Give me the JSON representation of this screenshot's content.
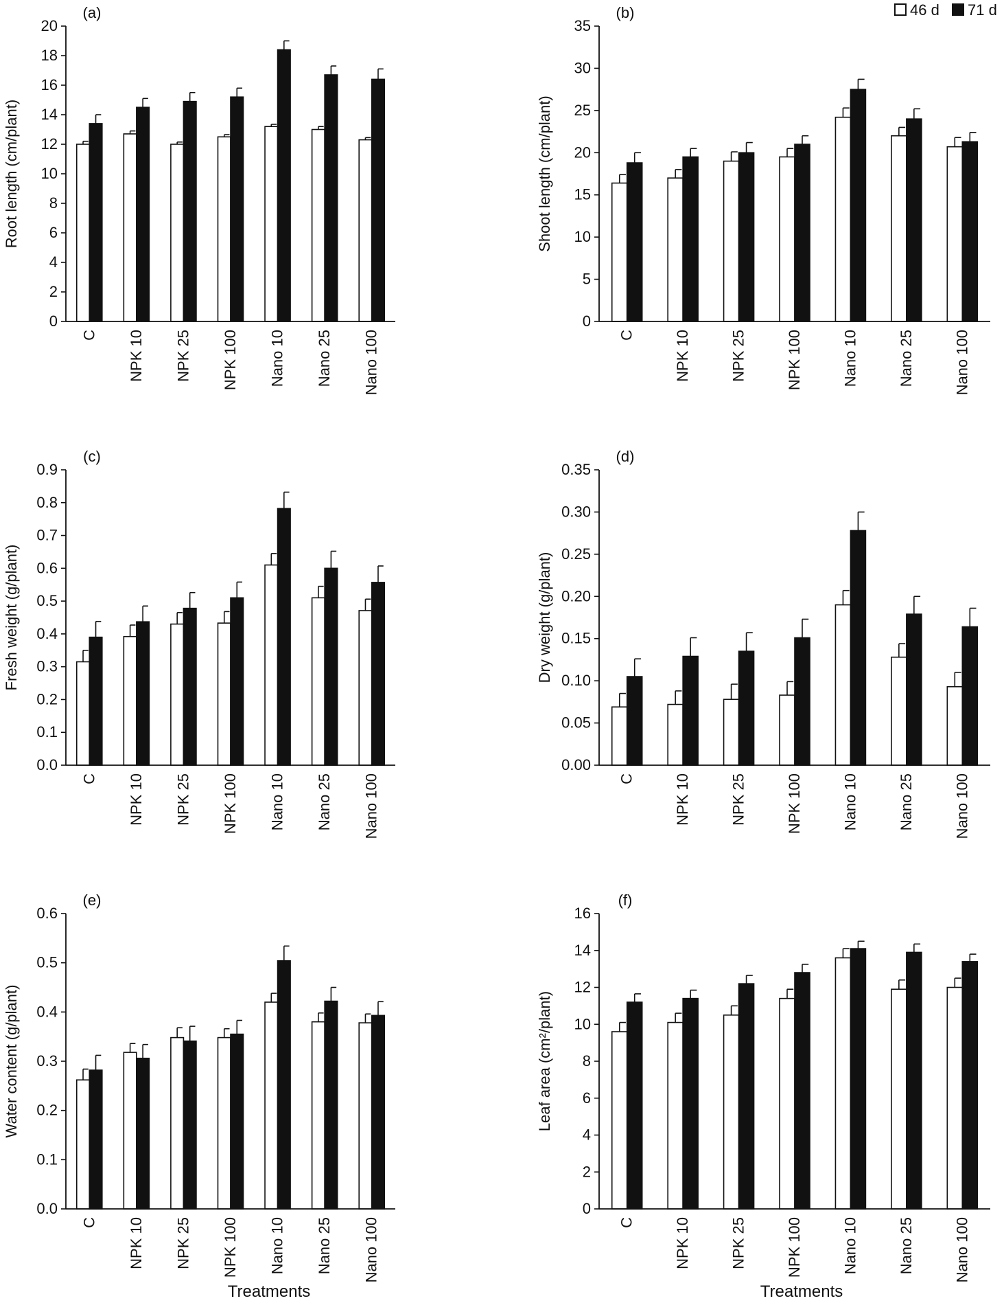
{
  "legend": {
    "items": [
      "46 d",
      "71 d"
    ]
  },
  "xtitle": [
    "Treatments",
    "Treatments"
  ],
  "colors": {
    "series_46d": "#ffffff",
    "series_71d": "#111111",
    "axis": "#111111"
  },
  "chart_data": [
    {
      "type": "bar",
      "panel": "(a)",
      "ylabel": "Root length (cm/plant)",
      "ylim": [
        0,
        20
      ],
      "ytick_step": 2,
      "ytick_decimals": 0,
      "categories": [
        "C",
        "NPK 10",
        "NPK 25",
        "NPK 100",
        "Nano 10",
        "Nano 25",
        "Nano 100"
      ],
      "series": [
        {
          "name": "46 d",
          "values": [
            12.0,
            12.7,
            12.0,
            12.5,
            13.2,
            13.0,
            12.3
          ],
          "errors": [
            0.2,
            0.2,
            0.15,
            0.15,
            0.15,
            0.2,
            0.15
          ]
        },
        {
          "name": "71 d",
          "values": [
            13.4,
            14.5,
            14.9,
            15.2,
            18.4,
            16.7,
            16.4
          ],
          "errors": [
            0.6,
            0.6,
            0.6,
            0.6,
            0.6,
            0.6,
            0.7
          ]
        }
      ]
    },
    {
      "type": "bar",
      "panel": "(b)",
      "ylabel": "Shoot length (cm/plant)",
      "ylim": [
        0,
        35
      ],
      "ytick_step": 5,
      "ytick_decimals": 0,
      "categories": [
        "C",
        "NPK 10",
        "NPK 25",
        "NPK 100",
        "Nano 10",
        "Nano 25",
        "Nano 100"
      ],
      "series": [
        {
          "name": "46 d",
          "values": [
            16.4,
            17.0,
            19.0,
            19.5,
            24.2,
            22.0,
            20.7
          ],
          "errors": [
            1.0,
            1.0,
            1.1,
            1.0,
            1.1,
            1.0,
            1.1
          ]
        },
        {
          "name": "71 d",
          "values": [
            18.8,
            19.5,
            20.0,
            21.0,
            27.5,
            24.0,
            21.3
          ],
          "errors": [
            1.2,
            1.0,
            1.2,
            1.0,
            1.2,
            1.2,
            1.1
          ]
        }
      ]
    },
    {
      "type": "bar",
      "panel": "(c)",
      "ylabel": "Fresh weight (g/plant)",
      "ylim": [
        0,
        0.9
      ],
      "ytick_step": 0.1,
      "ytick_decimals": 1,
      "categories": [
        "C",
        "NPK 10",
        "NPK 25",
        "NPK 100",
        "Nano 10",
        "Nano 25",
        "Nano 100"
      ],
      "series": [
        {
          "name": "46 d",
          "values": [
            0.315,
            0.392,
            0.43,
            0.433,
            0.61,
            0.51,
            0.471
          ],
          "errors": [
            0.035,
            0.035,
            0.035,
            0.035,
            0.035,
            0.035,
            0.035
          ]
        },
        {
          "name": "71 d",
          "values": [
            0.39,
            0.437,
            0.478,
            0.51,
            0.782,
            0.6,
            0.557
          ],
          "errors": [
            0.048,
            0.048,
            0.048,
            0.048,
            0.05,
            0.052,
            0.05
          ]
        }
      ]
    },
    {
      "type": "bar",
      "panel": "(d)",
      "ylabel": "Dry weight (g/plant)",
      "ylim": [
        0,
        0.35
      ],
      "ytick_step": 0.05,
      "ytick_decimals": 2,
      "categories": [
        "C",
        "NPK 10",
        "NPK 25",
        "NPK 100",
        "Nano 10",
        "Nano 25",
        "Nano 100"
      ],
      "series": [
        {
          "name": "46 d",
          "values": [
            0.069,
            0.072,
            0.078,
            0.083,
            0.19,
            0.128,
            0.093
          ],
          "errors": [
            0.016,
            0.016,
            0.018,
            0.016,
            0.017,
            0.016,
            0.017
          ]
        },
        {
          "name": "71 d",
          "values": [
            0.105,
            0.129,
            0.135,
            0.151,
            0.278,
            0.179,
            0.164
          ],
          "errors": [
            0.021,
            0.022,
            0.022,
            0.022,
            0.022,
            0.021,
            0.022
          ]
        }
      ]
    },
    {
      "type": "bar",
      "panel": "(e)",
      "ylabel": "Water content (g/plant)",
      "ylim": [
        0,
        0.6
      ],
      "ytick_step": 0.1,
      "ytick_decimals": 1,
      "categories": [
        "C",
        "NPK 10",
        "NPK 25",
        "NPK 100",
        "Nano 10",
        "Nano 25",
        "Nano 100"
      ],
      "series": [
        {
          "name": "46 d",
          "values": [
            0.262,
            0.318,
            0.348,
            0.348,
            0.42,
            0.38,
            0.378
          ],
          "errors": [
            0.022,
            0.018,
            0.02,
            0.018,
            0.018,
            0.018,
            0.018
          ]
        },
        {
          "name": "71 d",
          "values": [
            0.282,
            0.306,
            0.341,
            0.355,
            0.504,
            0.422,
            0.393
          ],
          "errors": [
            0.03,
            0.028,
            0.03,
            0.028,
            0.03,
            0.028,
            0.028
          ]
        }
      ]
    },
    {
      "type": "bar",
      "panel": "(f)",
      "ylabel": "Leaf area (cm²/plant)",
      "ylim": [
        0,
        16
      ],
      "ytick_step": 2,
      "ytick_decimals": 0,
      "categories": [
        "C",
        "NPK 10",
        "NPK 25",
        "NPK 100",
        "Nano 10",
        "Nano 25",
        "Nano 100"
      ],
      "series": [
        {
          "name": "46 d",
          "values": [
            9.6,
            10.1,
            10.5,
            11.4,
            13.6,
            11.9,
            12.0
          ],
          "errors": [
            0.5,
            0.5,
            0.5,
            0.5,
            0.5,
            0.5,
            0.5
          ]
        },
        {
          "name": "71 d",
          "values": [
            11.2,
            11.4,
            12.2,
            12.8,
            14.1,
            13.9,
            13.4
          ],
          "errors": [
            0.45,
            0.45,
            0.45,
            0.45,
            0.4,
            0.45,
            0.4
          ]
        }
      ]
    }
  ]
}
